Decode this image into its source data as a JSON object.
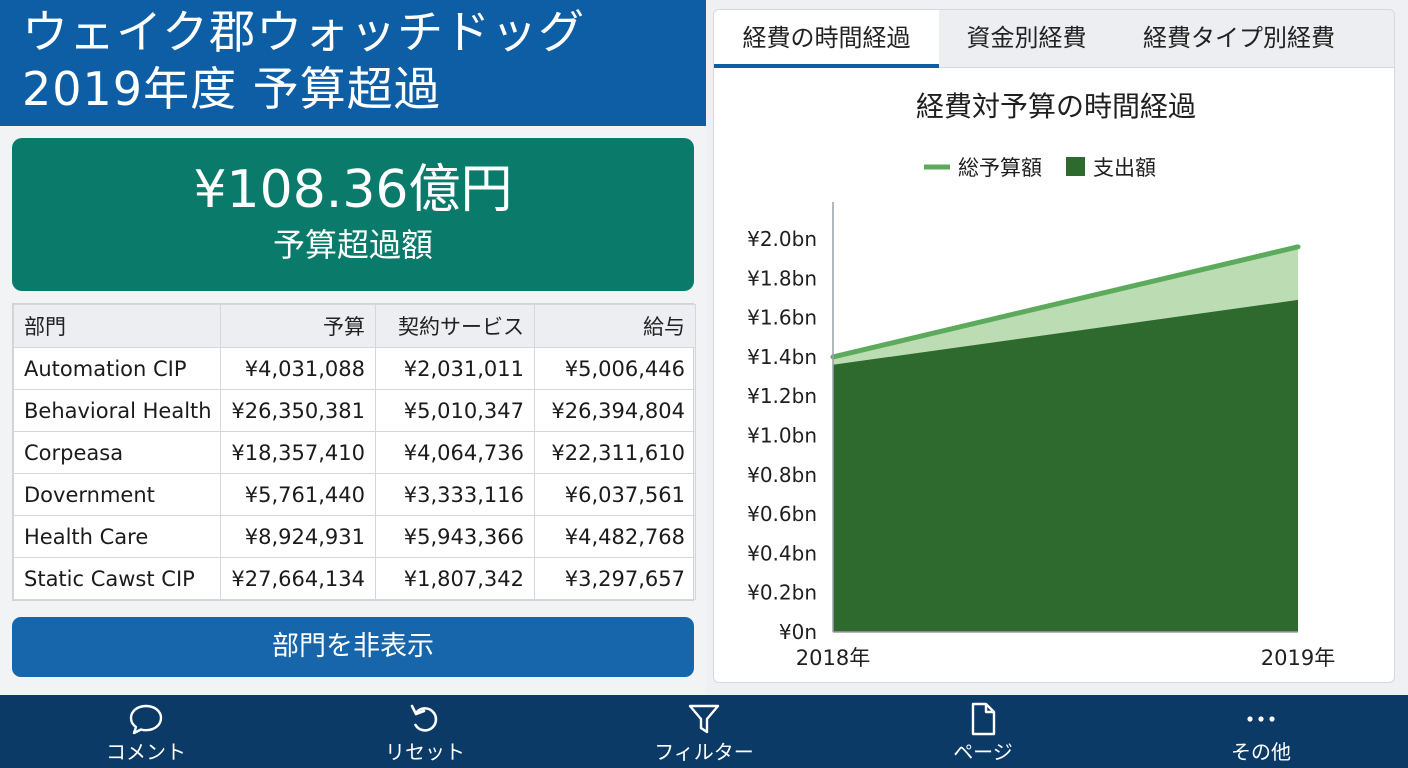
{
  "header": {
    "title_line1": "ウェイク郡ウォッチドッグ",
    "title_line2": "2019年度 予算超過"
  },
  "kpi": {
    "amount": "¥108.36億円",
    "label": "予算超過額"
  },
  "table": {
    "headers": [
      "部門",
      "予算",
      "契約サービス",
      "給与"
    ],
    "rows": [
      [
        "Automation CIP",
        "¥4,031,088",
        "¥2,031,011",
        "¥5,006,446"
      ],
      [
        "Behavioral Health",
        "¥26,350,381",
        "¥5,010,347",
        "¥26,394,804"
      ],
      [
        "Corpeasa",
        "¥18,357,410",
        "¥4,064,736",
        "¥22,311,610"
      ],
      [
        "Dovernment",
        "¥5,761,440",
        "¥3,333,116",
        "¥6,037,561"
      ],
      [
        "Health Care",
        "¥8,924,931",
        "¥5,943,366",
        "¥4,482,768"
      ],
      [
        "Static Cawst CIP",
        "¥27,664,134",
        "¥1,807,342",
        "¥3,297,657"
      ]
    ]
  },
  "hide_button": "部門を非表示",
  "tabs": [
    {
      "label": "経費の時間経過",
      "active": true
    },
    {
      "label": "資金別経費",
      "active": false
    },
    {
      "label": "経費タイプ別経費",
      "active": false
    }
  ],
  "chart_data": {
    "type": "area",
    "title": "経費対予算の時間経過",
    "x": [
      "2018年",
      "2019年"
    ],
    "series": [
      {
        "name": "総予算額",
        "values": [
          1.4,
          1.96
        ],
        "color": "#5cab5c",
        "fill": "#bcdcb4"
      },
      {
        "name": "支出額",
        "values": [
          1.36,
          1.69
        ],
        "color": "#2e6a2e"
      }
    ],
    "y_ticks": [
      "¥0n",
      "¥0.2bn",
      "¥0.4bn",
      "¥0.6bn",
      "¥0.8bn",
      "¥1.0bn",
      "¥1.2bn",
      "¥1.4bn",
      "¥1.6bn",
      "¥1.8bn",
      "¥2.0bn"
    ],
    "y_tick_values": [
      0,
      0.2,
      0.4,
      0.6,
      0.8,
      1.0,
      1.2,
      1.4,
      1.6,
      1.8,
      2.0
    ],
    "ylim": [
      0,
      2.0
    ],
    "legend_position": "top",
    "grid": false
  },
  "bottom_nav": [
    {
      "label": "コメント",
      "icon": "comment-icon"
    },
    {
      "label": "リセット",
      "icon": "reset-icon"
    },
    {
      "label": "フィルター",
      "icon": "filter-icon"
    },
    {
      "label": "ページ",
      "icon": "page-icon"
    },
    {
      "label": "その他",
      "icon": "more-icon"
    }
  ],
  "colors": {
    "header_blue": "#0e5ea5",
    "kpi_green": "#0a7a6b",
    "button_blue": "#1766ab",
    "bottom_bar": "#0c3a66"
  }
}
